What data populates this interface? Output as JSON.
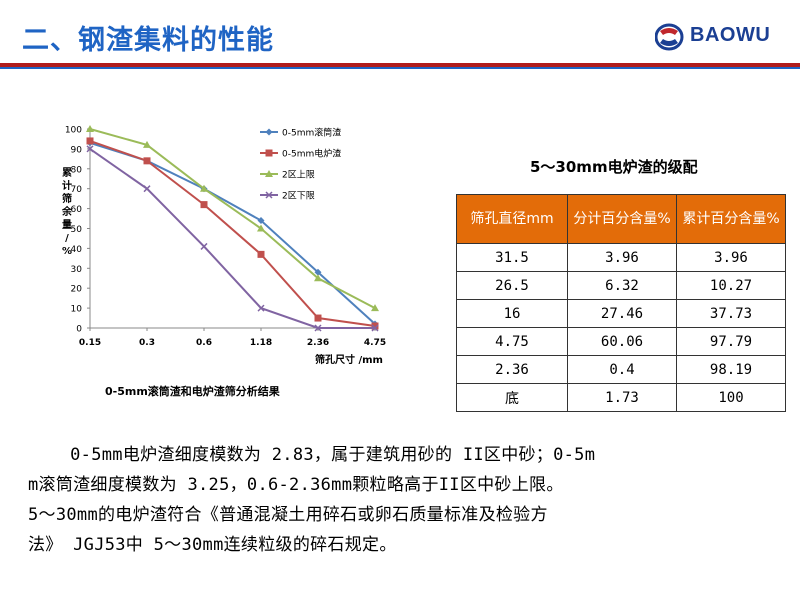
{
  "header": {
    "title": "二、钢渣集料的性能",
    "logo_text": "BAOWU",
    "colors": {
      "title": "#1f64c4",
      "rule_red": "#b01c1c",
      "rule_blue": "#1f64c4",
      "logo": "#1b3f93"
    }
  },
  "chart_data": {
    "type": "line",
    "caption": "0-5mm滚筒渣和电炉渣筛分析结果",
    "xlabel": "筛孔尺寸 /mm",
    "ylabel": "累计筛余量/%",
    "ylabel_chars": [
      "累",
      "计",
      "筛",
      "余",
      "量",
      "/",
      "%"
    ],
    "categories": [
      "0.15",
      "0.3",
      "0.6",
      "1.18",
      "2.36",
      "4.75"
    ],
    "ylim": [
      0,
      100
    ],
    "yticks": [
      "0",
      "10",
      "20",
      "30",
      "40",
      "50",
      "60",
      "70",
      "80",
      "90",
      "100"
    ],
    "legend_position": "top-right",
    "grid": false,
    "series": [
      {
        "name": "0-5mm滚筒渣",
        "color": "#4f81bd",
        "marker": "diamond",
        "values": [
          93,
          84,
          70,
          54,
          28,
          2
        ]
      },
      {
        "name": "0-5mm电炉渣",
        "color": "#c0504d",
        "marker": "square",
        "values": [
          94,
          84,
          62,
          37,
          5,
          1
        ]
      },
      {
        "name": "2区上限",
        "color": "#9bbb59",
        "marker": "triangle",
        "values": [
          100,
          92,
          70,
          50,
          25,
          10
        ]
      },
      {
        "name": "2区下限",
        "color": "#8064a2",
        "marker": "x",
        "values": [
          90,
          70,
          41,
          10,
          0,
          0
        ]
      }
    ]
  },
  "table": {
    "title": "5～30mm电炉渣的级配",
    "header_color": "#e36c09",
    "headers": [
      "筛孔直径mm",
      "分计百分含量%",
      "累计百分含量%"
    ],
    "rows": [
      [
        "31.5",
        "3.96",
        "3.96"
      ],
      [
        "26.5",
        "6.32",
        "10.27"
      ],
      [
        "16",
        "27.46",
        "37.73"
      ],
      [
        "4.75",
        "60.06",
        "97.79"
      ],
      [
        "2.36",
        "0.4",
        "98.19"
      ],
      [
        "底",
        "1.73",
        "100"
      ]
    ]
  },
  "paragraph": {
    "lines": [
      "    0-5mm电炉渣细度模数为 2.83，属于建筑用砂的 II区中砂；0-5m",
      "m滚筒渣细度模数为 3.25，0.6-2.36mm颗粒略高于II区中砂上限。",
      "5～30mm的电炉渣符合《普通混凝土用碎石或卵石质量标准及检验方",
      "法》 JGJ53中 5～30mm连续粒级的碎石规定。"
    ]
  }
}
